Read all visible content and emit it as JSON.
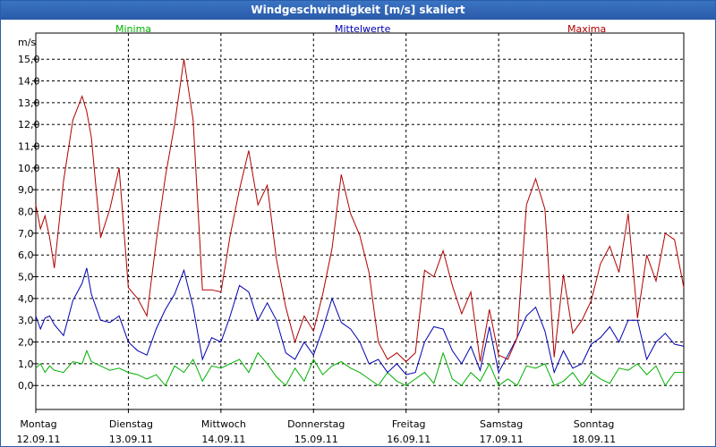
{
  "window": {
    "title": "Windgeschwindigkeit [m/s] skaliert"
  },
  "chart_data": {
    "type": "line",
    "title": "Windgeschwindigkeit [m/s] skaliert",
    "ylabel": "m/s",
    "ylim": [
      -1.1,
      16.2
    ],
    "x_range": [
      0,
      7
    ],
    "grid": true,
    "yticks": [
      "15,0",
      "14,0",
      "13,0",
      "12,0",
      "11,0",
      "10,0",
      "9,0",
      "8,0",
      "7,0",
      "6,0",
      "5,0",
      "4,0",
      "3,0",
      "2,0",
      "1,0",
      "0,0"
    ],
    "ytick_values": [
      15,
      14,
      13,
      12,
      11,
      10,
      9,
      8,
      7,
      6,
      5,
      4,
      3,
      2,
      1,
      0
    ],
    "day_labels": [
      {
        "day": "Montag",
        "date": "12.09.11"
      },
      {
        "day": "Dienstag",
        "date": "13.09.11"
      },
      {
        "day": "Mittwoch",
        "date": "14.09.11"
      },
      {
        "day": "Donnerstag",
        "date": "15.09.11"
      },
      {
        "day": "Freitag",
        "date": "16.09.11"
      },
      {
        "day": "Samstag",
        "date": "17.09.11"
      },
      {
        "day": "Sonntag",
        "date": "18.09.11"
      }
    ],
    "series": [
      {
        "name": "Minima",
        "color": "#00b000",
        "x": [
          0,
          0.05,
          0.1,
          0.15,
          0.2,
          0.3,
          0.4,
          0.5,
          0.55,
          0.6,
          0.7,
          0.8,
          0.9,
          1.0,
          1.1,
          1.2,
          1.3,
          1.4,
          1.5,
          1.6,
          1.7,
          1.8,
          1.9,
          2.0,
          2.1,
          2.2,
          2.3,
          2.4,
          2.5,
          2.6,
          2.7,
          2.8,
          2.9,
          3.0,
          3.1,
          3.2,
          3.3,
          3.4,
          3.5,
          3.6,
          3.7,
          3.8,
          3.9,
          4.0,
          4.1,
          4.2,
          4.3,
          4.4,
          4.5,
          4.6,
          4.7,
          4.8,
          4.9,
          5.0,
          5.1,
          5.2,
          5.3,
          5.4,
          5.5,
          5.6,
          5.7,
          5.8,
          5.9,
          6.0,
          6.1,
          6.2,
          6.3,
          6.4,
          6.5,
          6.6,
          6.7,
          6.8,
          6.9,
          7.0
        ],
        "values": [
          0.8,
          1.0,
          0.6,
          0.9,
          0.7,
          0.6,
          1.1,
          1.0,
          1.6,
          1.1,
          0.9,
          0.7,
          0.8,
          0.6,
          0.5,
          0.3,
          0.5,
          0.0,
          0.9,
          0.6,
          1.2,
          0.2,
          0.9,
          0.8,
          1.0,
          1.2,
          0.6,
          1.5,
          1.0,
          0.4,
          0.0,
          0.8,
          0.2,
          1.2,
          0.5,
          0.9,
          1.1,
          0.8,
          0.6,
          0.3,
          0.0,
          0.6,
          0.2,
          0.0,
          0.3,
          0.6,
          0.1,
          1.5,
          0.3,
          0.0,
          0.6,
          0.2,
          1.0,
          0.0,
          0.3,
          0.0,
          0.9,
          0.8,
          1.0,
          0.0,
          0.2,
          0.6,
          0.0,
          0.6,
          0.3,
          0.1,
          0.8,
          0.7,
          1.0,
          0.5,
          0.9,
          0.0,
          0.6,
          0.6
        ]
      },
      {
        "name": "Mittelwerte",
        "color": "#0000b0",
        "x": [
          0,
          0.05,
          0.1,
          0.15,
          0.2,
          0.3,
          0.4,
          0.5,
          0.55,
          0.6,
          0.7,
          0.8,
          0.9,
          1.0,
          1.1,
          1.2,
          1.3,
          1.4,
          1.5,
          1.6,
          1.7,
          1.8,
          1.9,
          2.0,
          2.1,
          2.2,
          2.3,
          2.4,
          2.5,
          2.6,
          2.7,
          2.8,
          2.9,
          3.0,
          3.1,
          3.2,
          3.3,
          3.4,
          3.5,
          3.6,
          3.7,
          3.8,
          3.9,
          4.0,
          4.1,
          4.2,
          4.3,
          4.4,
          4.5,
          4.6,
          4.7,
          4.8,
          4.9,
          5.0,
          5.1,
          5.2,
          5.3,
          5.4,
          5.5,
          5.6,
          5.7,
          5.8,
          5.9,
          6.0,
          6.1,
          6.2,
          6.3,
          6.4,
          6.5,
          6.6,
          6.7,
          6.8,
          6.9,
          7.0
        ],
        "values": [
          3.2,
          2.6,
          3.1,
          3.2,
          2.8,
          2.3,
          3.9,
          4.7,
          5.4,
          4.2,
          3.0,
          2.9,
          3.2,
          2.0,
          1.6,
          1.4,
          2.6,
          3.5,
          4.2,
          5.3,
          3.6,
          1.2,
          2.2,
          2.0,
          3.2,
          4.6,
          4.3,
          3.0,
          3.8,
          3.0,
          1.5,
          1.2,
          2.0,
          1.4,
          2.6,
          4.0,
          2.9,
          2.6,
          2.0,
          1.0,
          1.2,
          0.6,
          1.0,
          0.5,
          0.6,
          2.0,
          2.7,
          2.6,
          1.6,
          1.0,
          1.8,
          0.7,
          2.7,
          0.6,
          1.4,
          2.2,
          3.2,
          3.6,
          2.5,
          0.6,
          1.6,
          0.8,
          1.0,
          1.9,
          2.2,
          2.7,
          2.0,
          3.0,
          3.0,
          1.2,
          2.0,
          2.4,
          1.9,
          1.8
        ]
      },
      {
        "name": "Maxima",
        "color": "#b00000",
        "x": [
          0,
          0.05,
          0.1,
          0.15,
          0.2,
          0.3,
          0.4,
          0.5,
          0.55,
          0.6,
          0.7,
          0.8,
          0.9,
          1.0,
          1.1,
          1.2,
          1.3,
          1.4,
          1.5,
          1.6,
          1.7,
          1.8,
          1.9,
          2.0,
          2.1,
          2.2,
          2.3,
          2.4,
          2.5,
          2.6,
          2.7,
          2.8,
          2.9,
          3.0,
          3.1,
          3.2,
          3.3,
          3.4,
          3.5,
          3.6,
          3.7,
          3.8,
          3.9,
          4.0,
          4.1,
          4.2,
          4.3,
          4.4,
          4.5,
          4.6,
          4.7,
          4.8,
          4.9,
          5.0,
          5.1,
          5.2,
          5.3,
          5.4,
          5.5,
          5.6,
          5.7,
          5.8,
          5.9,
          6.0,
          6.1,
          6.2,
          6.3,
          6.4,
          6.5,
          6.6,
          6.7,
          6.8,
          6.9,
          7.0
        ],
        "values": [
          8.3,
          7.2,
          7.8,
          6.8,
          5.4,
          9.4,
          12.2,
          13.3,
          12.6,
          11.4,
          6.8,
          8.1,
          10.0,
          4.5,
          4.0,
          3.2,
          6.6,
          9.6,
          12.0,
          15.0,
          12.2,
          4.4,
          4.4,
          4.3,
          6.9,
          9.0,
          10.8,
          8.3,
          9.2,
          5.8,
          3.6,
          2.0,
          3.2,
          2.5,
          4.2,
          6.3,
          9.7,
          7.9,
          6.9,
          5.2,
          2.0,
          1.2,
          1.5,
          1.1,
          1.5,
          5.3,
          5.0,
          6.2,
          4.6,
          3.3,
          4.3,
          1.1,
          3.5,
          1.4,
          1.2,
          2.2,
          8.3,
          9.5,
          8.1,
          1.3,
          5.1,
          2.4,
          3.0,
          3.9,
          5.6,
          6.4,
          5.2,
          7.9,
          3.1,
          6.0,
          4.8,
          7.0,
          6.7,
          4.5
        ]
      }
    ]
  }
}
